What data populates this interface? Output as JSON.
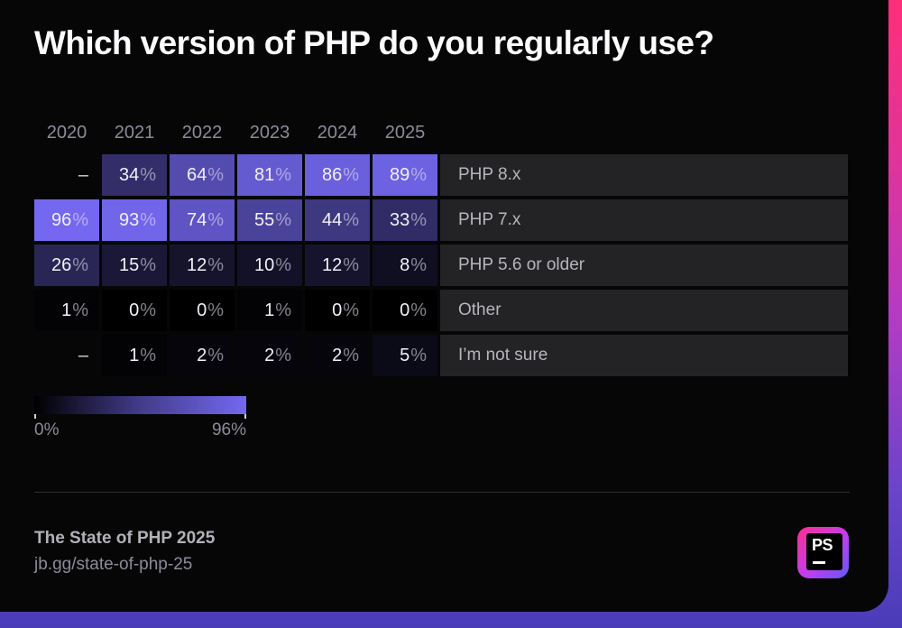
{
  "chart_data": {
    "type": "heatmap",
    "title": "Which version of PHP do you regularly use?",
    "columns": [
      "2020",
      "2021",
      "2022",
      "2023",
      "2024",
      "2025"
    ],
    "rows": [
      {
        "label": "PHP 8.x",
        "values": [
          null,
          34,
          64,
          81,
          86,
          89
        ]
      },
      {
        "label": "PHP 7.x",
        "values": [
          96,
          93,
          74,
          55,
          44,
          33
        ]
      },
      {
        "label": "PHP 5.6 or older",
        "values": [
          26,
          15,
          12,
          10,
          12,
          8
        ]
      },
      {
        "label": "Other",
        "values": [
          1,
          0,
          0,
          1,
          0,
          0
        ]
      },
      {
        "label": "I’m not sure",
        "values": [
          null,
          1,
          2,
          2,
          2,
          5
        ]
      }
    ],
    "value_suffix": "%",
    "null_marker": "–",
    "colormap": {
      "min": 0,
      "max": 96,
      "min_color": "#000000",
      "max_color": "#7468f0",
      "gamma": 0.8
    },
    "legend": {
      "min_label": "0%",
      "max_label": "96%"
    },
    "layout": {
      "grid": "off",
      "legend_position": "bottom-left",
      "row_labels_position": "right"
    }
  },
  "footer": {
    "report_title": "The State of PHP 2025",
    "link": "jb.gg/state-of-php-25",
    "logo_text": "PS"
  },
  "colors": {
    "accent_pink": "#ff2e7a",
    "accent_blue": "#4a3cb8",
    "cell_max_purple": "#7468f0",
    "label_bar_bg": "#232326",
    "card_bg": "#060607"
  }
}
